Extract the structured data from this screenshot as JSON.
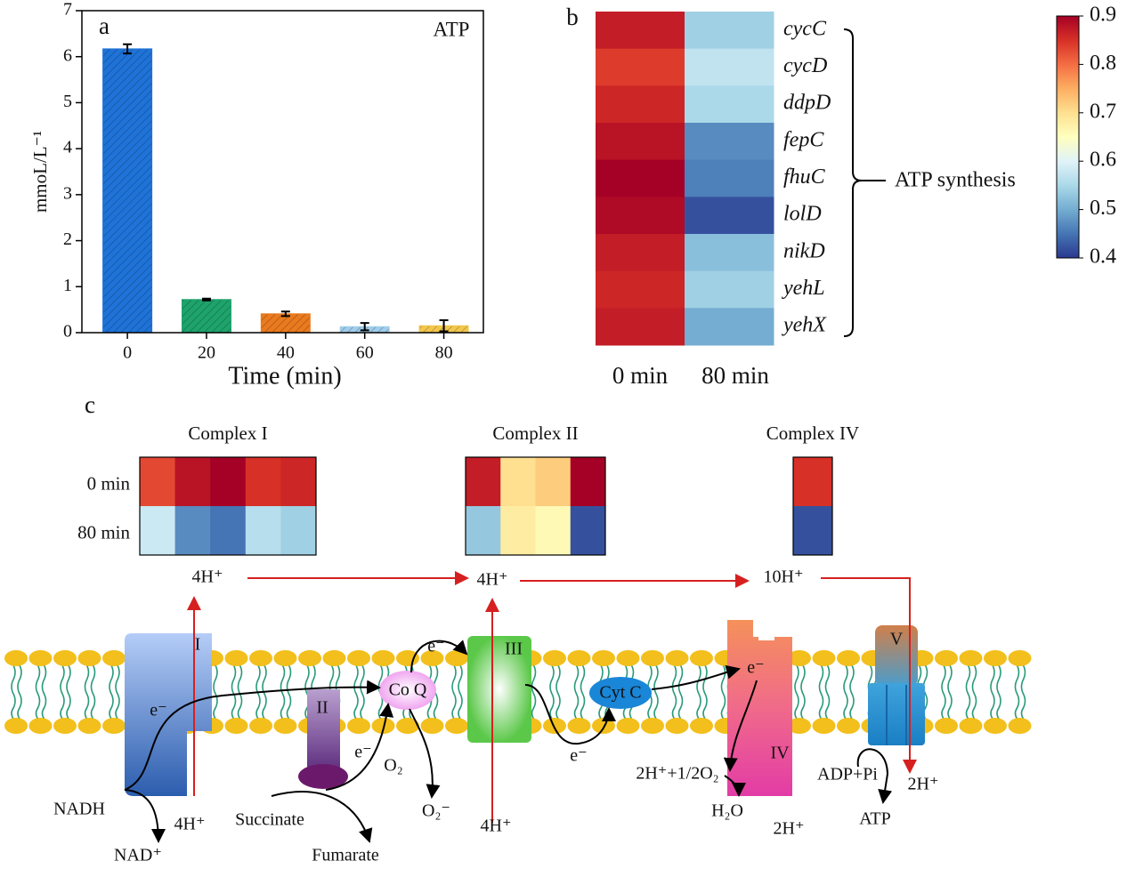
{
  "chart_data": [
    {
      "type": "bar",
      "label": "a",
      "annotation": "ATP",
      "x_label": "Time (min)",
      "y_label": "mmoL/L⁻¹",
      "x": [
        0,
        20,
        40,
        60,
        80
      ],
      "values": [
        6.17,
        0.72,
        0.41,
        0.13,
        0.15
      ],
      "errors": [
        0.1,
        0.02,
        0.05,
        0.08,
        0.12
      ],
      "colors": [
        "#1f73d8",
        "#1ea36c",
        "#ea7a1e",
        "#9fcdeb",
        "#f3c74c"
      ],
      "hatch": true,
      "xlim": [
        -11.5,
        90
      ],
      "xticks": [
        0,
        20,
        40,
        60,
        80
      ],
      "ylim": [
        0,
        7
      ],
      "yticks": [
        0,
        1,
        2,
        3,
        4,
        5,
        6,
        7
      ]
    },
    {
      "type": "heatmap",
      "label": "b",
      "bracket_label": "ATP synthesis",
      "columns": [
        "0 min",
        "80 min"
      ],
      "rows": [
        "cycC",
        "cycD",
        "ddpD",
        "fepC",
        "fhuC",
        "lolD",
        "nikD",
        "yehL",
        "yehX"
      ],
      "values": [
        [
          0.87,
          0.54
        ],
        [
          0.84,
          0.57
        ],
        [
          0.86,
          0.55
        ],
        [
          0.88,
          0.47
        ],
        [
          0.9,
          0.46
        ],
        [
          0.89,
          0.42
        ],
        [
          0.87,
          0.52
        ],
        [
          0.86,
          0.54
        ],
        [
          0.87,
          0.5
        ]
      ],
      "zlim": [
        0.4,
        0.9
      ],
      "zticks": [
        0.4,
        0.5,
        0.6,
        0.7,
        0.8,
        0.9
      ],
      "colorscale": [
        "#2b3990",
        "#4575b4",
        "#74add1",
        "#abd9e9",
        "#e0f3f8",
        "#ffffbf",
        "#fee090",
        "#fdae61",
        "#f46d43",
        "#d73027",
        "#a50026"
      ]
    },
    {
      "type": "heatmap_group",
      "label": "c",
      "rows": [
        "0 min",
        "80 min"
      ],
      "groups": [
        {
          "title": "Complex I",
          "values": [
            [
              0.83,
              0.88,
              0.9,
              0.85,
              0.86
            ],
            [
              0.58,
              0.47,
              0.45,
              0.56,
              0.54
            ]
          ]
        },
        {
          "title": "Complex II",
          "values": [
            [
              0.87,
              0.7,
              0.72,
              0.9
            ],
            [
              0.53,
              0.68,
              0.66,
              0.42
            ]
          ]
        },
        {
          "title": "Complex IV",
          "values": [
            [
              0.85
            ],
            [
              0.42
            ]
          ]
        }
      ],
      "zlim": [
        0.4,
        0.9
      ],
      "colorscale": [
        "#2b3990",
        "#4575b4",
        "#74add1",
        "#abd9e9",
        "#e0f3f8",
        "#ffffbf",
        "#fee090",
        "#fdae61",
        "#f46d43",
        "#d73027",
        "#a50026"
      ]
    }
  ],
  "diagram": {
    "labels": [
      "4H⁺",
      "4H⁺",
      "10H⁺",
      "I",
      "II",
      "III",
      "IV",
      "V",
      "Co Q",
      "Cyt C",
      "e⁻",
      "e⁻",
      "e⁻",
      "e⁻",
      "e⁻",
      "NADH",
      "NAD⁺",
      "4H⁺",
      "Succinate",
      "Fumarate",
      "O₂",
      "O₂⁻",
      "4H⁺",
      "2H⁺+1/2O₂",
      "H₂O",
      "2H⁺",
      "ADP+Pi",
      "ATP",
      "2H⁺"
    ]
  }
}
